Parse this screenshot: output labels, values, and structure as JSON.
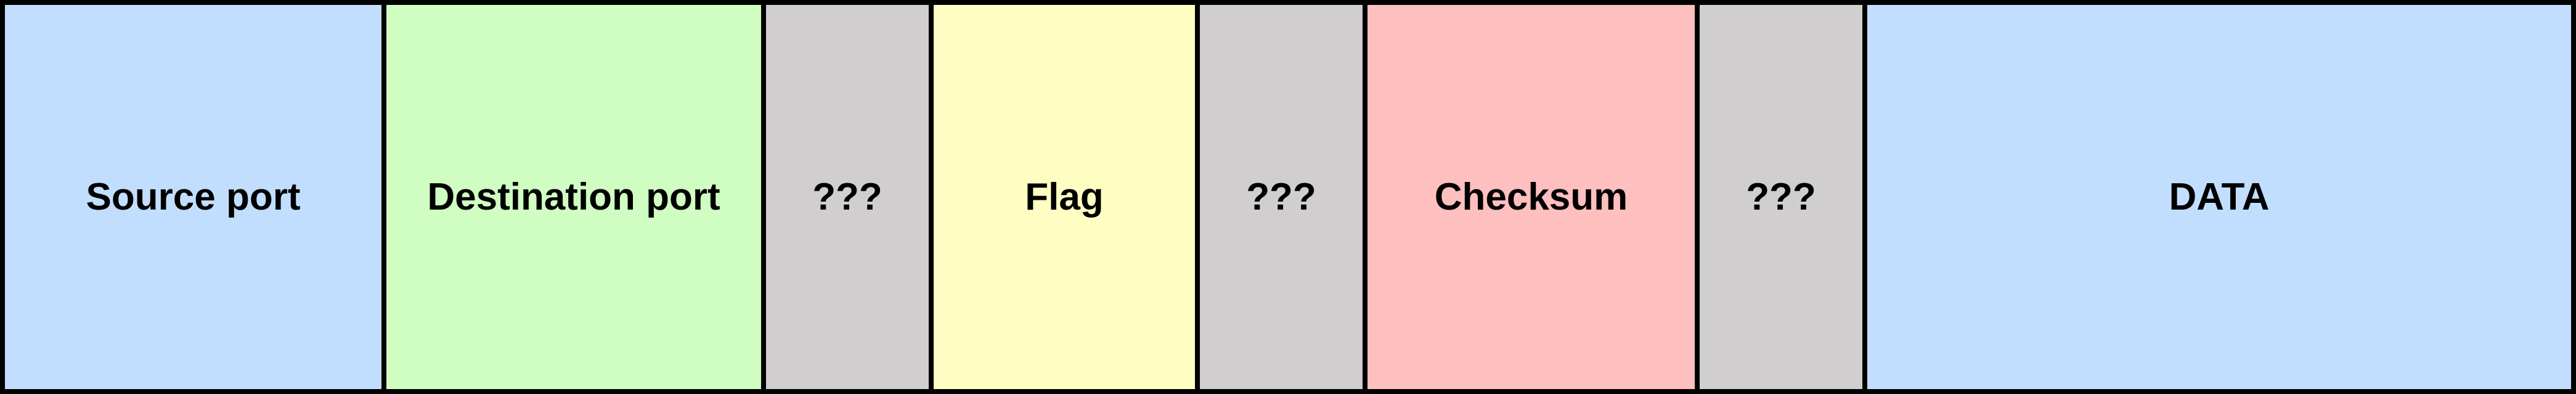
{
  "fields": [
    {
      "label": "Source port",
      "color": "#c2defe"
    },
    {
      "label": "Destination port",
      "color": "#d0fec2"
    },
    {
      "label": "???",
      "color": "#d0cece"
    },
    {
      "label": "Flag",
      "color": "#fefec2"
    },
    {
      "label": "???",
      "color": "#d0cece"
    },
    {
      "label": "Checksum",
      "color": "#febfbf"
    },
    {
      "label": "???",
      "color": "#d0cece"
    },
    {
      "label": "DATA",
      "color": "#c2defe"
    }
  ]
}
